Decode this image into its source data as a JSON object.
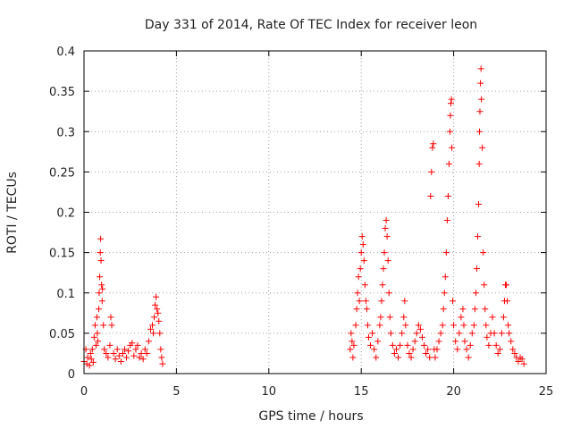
{
  "chart_data": {
    "type": "scatter",
    "title": "Day 331 of 2014, Rate Of TEC Index for receiver leon",
    "xlabel": "GPS time / hours",
    "ylabel": "ROTI / TECUs",
    "xlim": [
      0,
      25
    ],
    "ylim": [
      0,
      0.4
    ],
    "x_ticks": [
      0,
      5,
      10,
      15,
      20,
      25
    ],
    "y_ticks": [
      0,
      0.05,
      0.1,
      0.15,
      0.2,
      0.25,
      0.3,
      0.35,
      0.4
    ],
    "x_tick_labels": [
      "0",
      "5",
      "10",
      "15",
      "20",
      "25"
    ],
    "y_tick_labels": [
      "0",
      "0.05",
      "0.1",
      "0.15",
      "0.2",
      "0.25",
      "0.3",
      "0.35",
      "0.4"
    ],
    "grid": true,
    "marker": "+",
    "color": "#ff0000",
    "series": [
      {
        "points": [
          [
            0.0,
            0.015
          ],
          [
            0.1,
            0.03
          ],
          [
            0.15,
            0.012
          ],
          [
            0.2,
            0.02
          ],
          [
            0.3,
            0.01
          ],
          [
            0.35,
            0.025
          ],
          [
            0.4,
            0.018
          ],
          [
            0.45,
            0.03
          ],
          [
            0.5,
            0.014
          ],
          [
            0.55,
            0.045
          ],
          [
            0.6,
            0.06
          ],
          [
            0.65,
            0.035
          ],
          [
            0.7,
            0.07
          ],
          [
            0.72,
            0.05
          ],
          [
            0.75,
            0.04
          ],
          [
            0.8,
            0.08
          ],
          [
            0.82,
            0.1
          ],
          [
            0.85,
            0.12
          ],
          [
            0.88,
            0.15
          ],
          [
            0.9,
            0.167
          ],
          [
            0.92,
            0.14
          ],
          [
            0.95,
            0.11
          ],
          [
            0.98,
            0.09
          ],
          [
            1.0,
            0.105
          ],
          [
            1.05,
            0.06
          ],
          [
            1.1,
            0.03
          ],
          [
            1.2,
            0.025
          ],
          [
            1.3,
            0.02
          ],
          [
            1.4,
            0.035
          ],
          [
            1.45,
            0.07
          ],
          [
            1.5,
            0.06
          ],
          [
            1.6,
            0.025
          ],
          [
            1.7,
            0.018
          ],
          [
            1.8,
            0.03
          ],
          [
            1.9,
            0.022
          ],
          [
            2.0,
            0.015
          ],
          [
            2.1,
            0.025
          ],
          [
            2.2,
            0.03
          ],
          [
            2.3,
            0.02
          ],
          [
            2.4,
            0.028
          ],
          [
            2.5,
            0.035
          ],
          [
            2.6,
            0.038
          ],
          [
            2.7,
            0.022
          ],
          [
            2.8,
            0.03
          ],
          [
            2.9,
            0.035
          ],
          [
            3.0,
            0.02
          ],
          [
            3.1,
            0.025
          ],
          [
            3.2,
            0.018
          ],
          [
            3.3,
            0.03
          ],
          [
            3.4,
            0.025
          ],
          [
            3.5,
            0.04
          ],
          [
            3.6,
            0.055
          ],
          [
            3.7,
            0.06
          ],
          [
            3.75,
            0.05
          ],
          [
            3.8,
            0.07
          ],
          [
            3.85,
            0.085
          ],
          [
            3.9,
            0.095
          ],
          [
            3.95,
            0.08
          ],
          [
            4.0,
            0.075
          ],
          [
            4.05,
            0.065
          ],
          [
            4.1,
            0.05
          ],
          [
            4.15,
            0.03
          ],
          [
            4.2,
            0.02
          ],
          [
            4.25,
            0.012
          ],
          [
            14.4,
            0.03
          ],
          [
            14.45,
            0.05
          ],
          [
            14.5,
            0.04
          ],
          [
            14.55,
            0.02
          ],
          [
            14.6,
            0.035
          ],
          [
            14.7,
            0.06
          ],
          [
            14.75,
            0.08
          ],
          [
            14.8,
            0.1
          ],
          [
            14.85,
            0.12
          ],
          [
            14.9,
            0.09
          ],
          [
            14.95,
            0.13
          ],
          [
            15.0,
            0.15
          ],
          [
            15.05,
            0.17
          ],
          [
            15.1,
            0.16
          ],
          [
            15.15,
            0.14
          ],
          [
            15.2,
            0.11
          ],
          [
            15.25,
            0.09
          ],
          [
            15.3,
            0.08
          ],
          [
            15.35,
            0.06
          ],
          [
            15.4,
            0.045
          ],
          [
            15.5,
            0.035
          ],
          [
            15.6,
            0.05
          ],
          [
            15.7,
            0.03
          ],
          [
            15.8,
            0.02
          ],
          [
            15.9,
            0.04
          ],
          [
            16.0,
            0.06
          ],
          [
            16.05,
            0.07
          ],
          [
            16.1,
            0.09
          ],
          [
            16.15,
            0.11
          ],
          [
            16.2,
            0.13
          ],
          [
            16.25,
            0.15
          ],
          [
            16.3,
            0.18
          ],
          [
            16.35,
            0.19
          ],
          [
            16.4,
            0.17
          ],
          [
            16.45,
            0.14
          ],
          [
            16.5,
            0.1
          ],
          [
            16.55,
            0.07
          ],
          [
            16.6,
            0.05
          ],
          [
            16.7,
            0.035
          ],
          [
            16.8,
            0.025
          ],
          [
            16.9,
            0.03
          ],
          [
            17.0,
            0.02
          ],
          [
            17.1,
            0.035
          ],
          [
            17.2,
            0.05
          ],
          [
            17.3,
            0.07
          ],
          [
            17.35,
            0.09
          ],
          [
            17.4,
            0.06
          ],
          [
            17.5,
            0.035
          ],
          [
            17.6,
            0.025
          ],
          [
            17.7,
            0.02
          ],
          [
            17.8,
            0.03
          ],
          [
            17.9,
            0.04
          ],
          [
            18.0,
            0.05
          ],
          [
            18.1,
            0.06
          ],
          [
            18.2,
            0.055
          ],
          [
            18.3,
            0.045
          ],
          [
            18.4,
            0.035
          ],
          [
            18.5,
            0.025
          ],
          [
            18.6,
            0.03
          ],
          [
            18.7,
            0.02
          ],
          [
            18.75,
            0.22
          ],
          [
            18.8,
            0.25
          ],
          [
            18.85,
            0.28
          ],
          [
            18.9,
            0.285
          ],
          [
            18.95,
            0.03
          ],
          [
            19.0,
            0.02
          ],
          [
            19.1,
            0.03
          ],
          [
            19.2,
            0.04
          ],
          [
            19.3,
            0.05
          ],
          [
            19.4,
            0.06
          ],
          [
            19.45,
            0.08
          ],
          [
            19.5,
            0.1
          ],
          [
            19.55,
            0.12
          ],
          [
            19.6,
            0.15
          ],
          [
            19.65,
            0.19
          ],
          [
            19.7,
            0.22
          ],
          [
            19.75,
            0.26
          ],
          [
            19.8,
            0.3
          ],
          [
            19.82,
            0.32
          ],
          [
            19.85,
            0.335
          ],
          [
            19.88,
            0.34
          ],
          [
            19.9,
            0.28
          ],
          [
            19.95,
            0.09
          ],
          [
            20.0,
            0.06
          ],
          [
            20.1,
            0.04
          ],
          [
            20.2,
            0.03
          ],
          [
            20.3,
            0.05
          ],
          [
            20.4,
            0.07
          ],
          [
            20.5,
            0.08
          ],
          [
            20.55,
            0.06
          ],
          [
            20.6,
            0.04
          ],
          [
            20.7,
            0.03
          ],
          [
            20.8,
            0.02
          ],
          [
            20.9,
            0.035
          ],
          [
            21.0,
            0.05
          ],
          [
            21.1,
            0.06
          ],
          [
            21.15,
            0.08
          ],
          [
            21.2,
            0.1
          ],
          [
            21.25,
            0.13
          ],
          [
            21.3,
            0.17
          ],
          [
            21.35,
            0.21
          ],
          [
            21.38,
            0.26
          ],
          [
            21.4,
            0.3
          ],
          [
            21.42,
            0.325
          ],
          [
            21.45,
            0.36
          ],
          [
            21.48,
            0.378
          ],
          [
            21.5,
            0.34
          ],
          [
            21.55,
            0.28
          ],
          [
            21.6,
            0.15
          ],
          [
            21.65,
            0.11
          ],
          [
            21.7,
            0.08
          ],
          [
            21.75,
            0.06
          ],
          [
            21.8,
            0.045
          ],
          [
            21.9,
            0.035
          ],
          [
            22.0,
            0.05
          ],
          [
            22.1,
            0.07
          ],
          [
            22.2,
            0.05
          ],
          [
            22.3,
            0.035
          ],
          [
            22.4,
            0.025
          ],
          [
            22.5,
            0.03
          ],
          [
            22.6,
            0.05
          ],
          [
            22.7,
            0.07
          ],
          [
            22.75,
            0.09
          ],
          [
            22.8,
            0.11
          ],
          [
            22.85,
            0.11
          ],
          [
            22.9,
            0.09
          ],
          [
            22.95,
            0.06
          ],
          [
            23.0,
            0.05
          ],
          [
            23.1,
            0.04
          ],
          [
            23.2,
            0.03
          ],
          [
            23.3,
            0.025
          ],
          [
            23.4,
            0.02
          ],
          [
            23.5,
            0.015
          ],
          [
            23.6,
            0.02
          ],
          [
            23.7,
            0.018
          ],
          [
            23.8,
            0.012
          ]
        ]
      }
    ]
  }
}
